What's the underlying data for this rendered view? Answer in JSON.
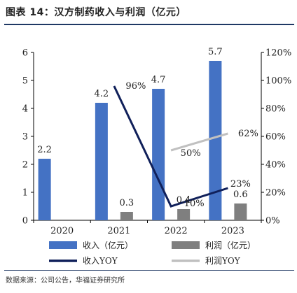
{
  "title": "图表 14：汉方制药收入与利润（亿元）",
  "source": "数据来源：公司公告，华福证券研究所",
  "chart_data": {
    "type": "bar",
    "categories": [
      "2020",
      "2021",
      "2022",
      "2023"
    ],
    "series": [
      {
        "name": "收入（亿元）",
        "kind": "bar",
        "axis": "left",
        "color": "#4472c4",
        "values": [
          2.2,
          4.2,
          4.7,
          5.7
        ],
        "labels": [
          "2.2",
          "4.2",
          "4.7",
          "5.7"
        ]
      },
      {
        "name": "利润（亿元）",
        "kind": "bar",
        "axis": "left",
        "color": "#7f7f7f",
        "values": [
          null,
          0.3,
          0.4,
          0.6
        ],
        "labels": [
          "",
          "0.3",
          "0.4",
          "0.6"
        ]
      },
      {
        "name": "收入YOY",
        "kind": "line",
        "axis": "right",
        "color": "#10205a",
        "values": [
          null,
          96,
          10,
          23
        ],
        "labels": [
          "",
          "96%",
          "10%",
          "23%"
        ]
      },
      {
        "name": "利润YOY",
        "kind": "line",
        "axis": "right",
        "color": "#c0c0c0",
        "values": [
          null,
          null,
          50,
          62
        ],
        "labels": [
          "",
          "",
          "50%",
          "62%"
        ]
      }
    ],
    "y_left": {
      "min": 0,
      "max": 6,
      "ticks": [
        "0",
        "1",
        "2",
        "3",
        "4",
        "5",
        "6"
      ]
    },
    "y_right": {
      "min": 0,
      "max": 120,
      "ticks": [
        "0%",
        "20%",
        "40%",
        "60%",
        "80%",
        "100%",
        "120%"
      ]
    },
    "legend_position": "bottom",
    "grid": false
  }
}
